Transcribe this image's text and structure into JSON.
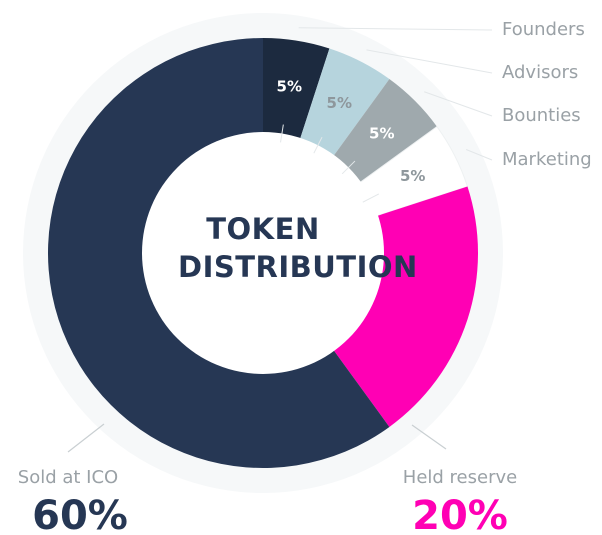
{
  "chart_data": {
    "type": "donut",
    "title": "TOKEN DISTRIBUTION",
    "categories": [
      "Founders",
      "Advisors",
      "Bounties",
      "Marketing",
      "Held reserve",
      "Sold at ICO"
    ],
    "values": [
      5,
      5,
      5,
      5,
      20,
      60
    ],
    "value_labels": [
      "5%",
      "5%",
      "5%",
      "5%",
      "20%",
      "60%"
    ],
    "colors": [
      "#1c2a3f",
      "#b6d4dd",
      "#9fa9ad",
      "#ffffff",
      "#ff00b4",
      "#263754"
    ]
  }
}
